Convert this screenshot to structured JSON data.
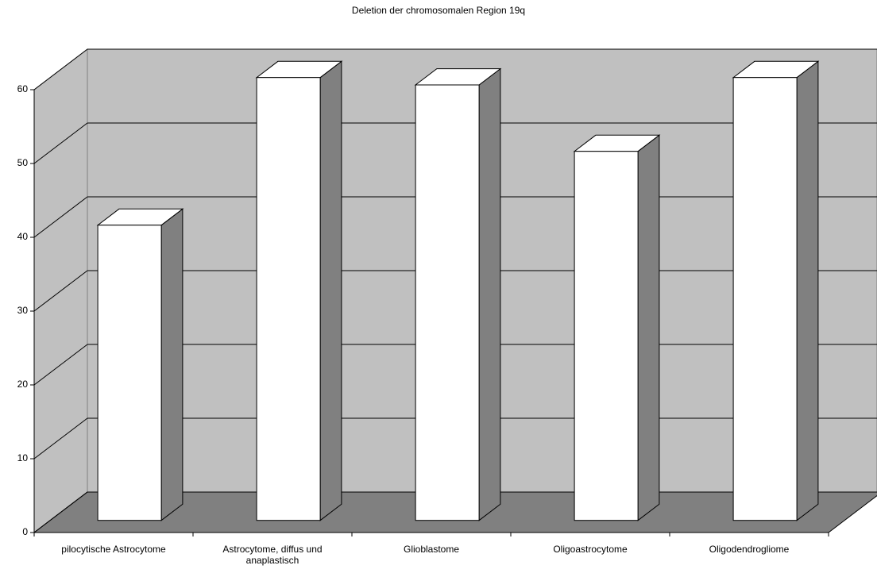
{
  "chart_data": {
    "type": "bar3d",
    "title": "Deletion der chromosomalen Region 19q",
    "categories": [
      "pilocytische Astrocytome",
      "Astrocytome, diffus und anaplastisch",
      "Glioblastome",
      "Oligoastrocytome",
      "Oligodendrogliome"
    ],
    "values": [
      40,
      60,
      59,
      50,
      60
    ],
    "color": "#ffffff",
    "side_color": "#808080",
    "ylim": [
      0,
      60
    ],
    "yticks": [
      0,
      10,
      20,
      30,
      40,
      50,
      60
    ],
    "grid": true
  }
}
